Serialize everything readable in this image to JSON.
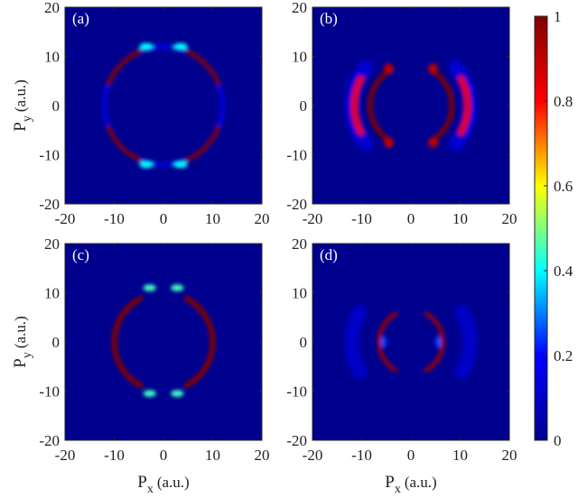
{
  "chart_data": [
    {
      "type": "heatmap",
      "panel_label": "(a)",
      "xlim": [
        -20,
        20
      ],
      "ylim": [
        -20,
        20
      ],
      "x_ticks": [
        "-20",
        "-10",
        "0",
        "10",
        "20"
      ],
      "y_ticks": [
        "-20",
        "-10",
        "0",
        "10",
        "20"
      ],
      "ylabel": "P",
      "ylabel_sub": "y",
      "ylabel_unit": "(a.u.)",
      "background_value": 0,
      "features": [
        {
          "shape": "ring",
          "center": [
            0,
            0
          ],
          "radius": 12.0,
          "width": 0.9,
          "value": 0.15,
          "gaps_deg": [
            [
              -20,
              20
            ],
            [
              68,
              112
            ],
            [
              160,
              200
            ],
            [
              248,
              292
            ]
          ]
        },
        {
          "shape": "arc",
          "center": [
            0,
            0
          ],
          "radius": 12.0,
          "width": 0.9,
          "start_deg": 22,
          "end_deg": 66,
          "value": 1.0
        },
        {
          "shape": "arc",
          "center": [
            0,
            0
          ],
          "radius": 12.0,
          "width": 0.9,
          "start_deg": 114,
          "end_deg": 158,
          "value": 1.0
        },
        {
          "shape": "arc",
          "center": [
            0,
            0
          ],
          "radius": 12.0,
          "width": 0.9,
          "start_deg": 202,
          "end_deg": 246,
          "value": 1.0
        },
        {
          "shape": "arc",
          "center": [
            0,
            0
          ],
          "radius": 12.0,
          "width": 0.9,
          "start_deg": 294,
          "end_deg": 338,
          "value": 1.0
        },
        {
          "shape": "blob",
          "center": [
            -3.5,
            12.0
          ],
          "rx": 1.4,
          "ry": 0.7,
          "value": 0.4
        },
        {
          "shape": "blob",
          "center": [
            3.5,
            12.0
          ],
          "rx": 1.4,
          "ry": 0.7,
          "value": 0.4
        },
        {
          "shape": "blob",
          "center": [
            -3.5,
            -12.0
          ],
          "rx": 1.4,
          "ry": 0.7,
          "value": 0.4
        },
        {
          "shape": "blob",
          "center": [
            3.5,
            -12.0
          ],
          "rx": 1.4,
          "ry": 0.7,
          "value": 0.4
        }
      ]
    },
    {
      "type": "heatmap",
      "panel_label": "(b)",
      "xlim": [
        -20,
        20
      ],
      "ylim": [
        -20,
        20
      ],
      "x_ticks": [
        "-20",
        "-10",
        "0",
        "10",
        "20"
      ],
      "y_ticks": [
        "-20",
        "-10",
        "0",
        "10",
        "20"
      ],
      "background_value": 0,
      "features": [
        {
          "shape": "arc",
          "center": [
            0,
            0
          ],
          "radius": 12.0,
          "width": 3.0,
          "start_deg": -40,
          "end_deg": 40,
          "value": 0.12
        },
        {
          "shape": "arc",
          "center": [
            0,
            0
          ],
          "radius": 12.0,
          "width": 3.0,
          "start_deg": 140,
          "end_deg": 220,
          "value": 0.12
        },
        {
          "shape": "arc",
          "center": [
            0,
            0
          ],
          "radius": 11.5,
          "width": 1.4,
          "start_deg": -28,
          "end_deg": 28,
          "value": 0.85
        },
        {
          "shape": "arc",
          "center": [
            0,
            0
          ],
          "radius": 11.5,
          "width": 1.4,
          "start_deg": 152,
          "end_deg": 208,
          "value": 0.85
        },
        {
          "shape": "arc",
          "center": [
            0,
            0
          ],
          "radius": 8.3,
          "width": 1.0,
          "start_deg": -55,
          "end_deg": 55,
          "value": 1.0
        },
        {
          "shape": "arc",
          "center": [
            0,
            0
          ],
          "radius": 8.3,
          "width": 1.0,
          "start_deg": 125,
          "end_deg": 235,
          "value": 1.0
        },
        {
          "shape": "blob",
          "center": [
            -4.5,
            7.5
          ],
          "rx": 1.0,
          "ry": 1.0,
          "value": 0.9
        },
        {
          "shape": "blob",
          "center": [
            4.5,
            7.5
          ],
          "rx": 1.0,
          "ry": 1.0,
          "value": 0.9
        },
        {
          "shape": "blob",
          "center": [
            -4.5,
            -7.5
          ],
          "rx": 1.0,
          "ry": 1.0,
          "value": 0.9
        },
        {
          "shape": "blob",
          "center": [
            4.5,
            -7.5
          ],
          "rx": 1.0,
          "ry": 1.0,
          "value": 0.9
        }
      ]
    },
    {
      "type": "heatmap",
      "panel_label": "(c)",
      "xlim": [
        -20,
        20
      ],
      "ylim": [
        -20,
        20
      ],
      "x_ticks": [
        "-20",
        "-10",
        "0",
        "10",
        "20"
      ],
      "y_ticks": [
        "-20",
        "-10",
        "0",
        "10",
        "20"
      ],
      "xlabel": "P",
      "xlabel_sub": "x",
      "xlabel_unit": "(a.u.)",
      "ylabel": "P",
      "ylabel_sub": "y",
      "ylabel_unit": "(a.u.)",
      "background_value": 0,
      "features": [
        {
          "shape": "arc",
          "center": [
            0,
            0
          ],
          "radius": 10.0,
          "width": 1.1,
          "start_deg": -62,
          "end_deg": 62,
          "value": 1.0
        },
        {
          "shape": "arc",
          "center": [
            0,
            0
          ],
          "radius": 10.0,
          "width": 1.1,
          "start_deg": 118,
          "end_deg": 242,
          "value": 1.0
        },
        {
          "shape": "blob",
          "center": [
            -2.8,
            11.0
          ],
          "rx": 1.3,
          "ry": 0.7,
          "value": 0.45
        },
        {
          "shape": "blob",
          "center": [
            2.8,
            11.0
          ],
          "rx": 1.3,
          "ry": 0.7,
          "value": 0.45
        },
        {
          "shape": "blob",
          "center": [
            -2.8,
            -10.5
          ],
          "rx": 1.3,
          "ry": 0.7,
          "value": 0.45
        },
        {
          "shape": "blob",
          "center": [
            2.8,
            -10.5
          ],
          "rx": 1.3,
          "ry": 0.7,
          "value": 0.45
        }
      ]
    },
    {
      "type": "heatmap",
      "panel_label": "(d)",
      "xlim": [
        -20,
        20
      ],
      "ylim": [
        -20,
        20
      ],
      "x_ticks": [
        "-20",
        "-10",
        "0",
        "10",
        "20"
      ],
      "y_ticks": [
        "-20",
        "-10",
        "0",
        "10",
        "20"
      ],
      "xlabel": "P",
      "xlabel_sub": "x",
      "xlabel_unit": "(a.u.)",
      "background_value": 0,
      "features": [
        {
          "shape": "arc",
          "center": [
            0,
            0
          ],
          "radius": 12.0,
          "width": 3.0,
          "start_deg": -30,
          "end_deg": 30,
          "value": 0.1
        },
        {
          "shape": "arc",
          "center": [
            0,
            0
          ],
          "radius": 12.0,
          "width": 3.0,
          "start_deg": 150,
          "end_deg": 210,
          "value": 0.1
        },
        {
          "shape": "arc",
          "center": [
            0,
            0
          ],
          "radius": 6.5,
          "width": 0.8,
          "start_deg": -62,
          "end_deg": 62,
          "value": 0.95
        },
        {
          "shape": "arc",
          "center": [
            0,
            0
          ],
          "radius": 6.5,
          "width": 0.8,
          "start_deg": 118,
          "end_deg": 242,
          "value": 0.95
        },
        {
          "shape": "blob",
          "center": [
            -5.5,
            0
          ],
          "rx": 0.6,
          "ry": 1.2,
          "value": 0.25
        },
        {
          "shape": "blob",
          "center": [
            5.5,
            0
          ],
          "rx": 0.6,
          "ry": 1.2,
          "value": 0.25
        }
      ]
    }
  ],
  "colorbar": {
    "colormap": "jet",
    "range": [
      0,
      1
    ],
    "ticks": [
      "0",
      "0.2",
      "0.4",
      "0.6",
      "0.8",
      "1"
    ],
    "colors": [
      "#00008f",
      "#0000ff",
      "#00ffff",
      "#ffff00",
      "#ff0000",
      "#800000"
    ]
  }
}
